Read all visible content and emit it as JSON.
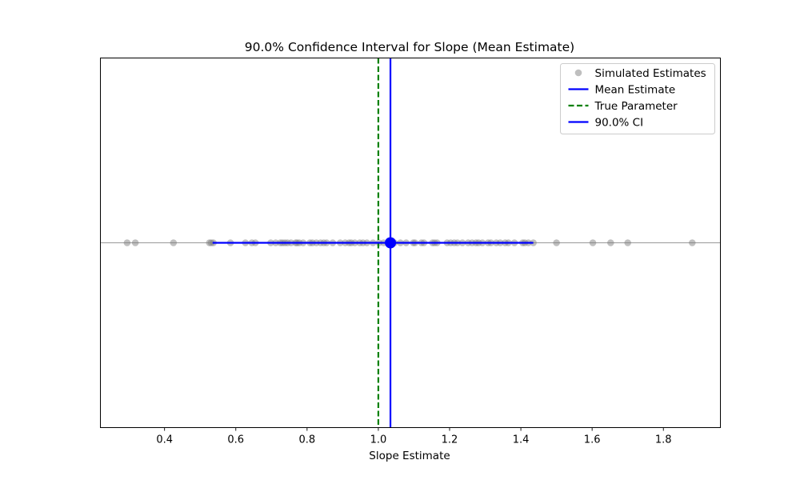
{
  "chart_data": {
    "type": "scatter",
    "title": "90.0% Confidence Interval for Slope (Mean Estimate)",
    "xlabel": "Slope Estimate",
    "ylabel": "",
    "xlim": [
      0.22,
      1.96
    ],
    "ylim": [
      -1,
      1
    ],
    "xticks": [
      0.4,
      0.6,
      0.8,
      1.0,
      1.2,
      1.4,
      1.6,
      1.8
    ],
    "xtick_labels": [
      "0.4",
      "0.6",
      "0.8",
      "1.0",
      "1.2",
      "1.4",
      "1.6",
      "1.8"
    ],
    "show_yticks": false,
    "grid": false,
    "legend_position": "top-right",
    "simulated_estimates": {
      "name": "Simulated Estimates",
      "color": "#808080",
      "y": 0,
      "values": [
        0.295,
        0.318,
        0.425,
        0.526,
        0.531,
        0.537,
        0.585,
        0.627,
        0.645,
        0.655,
        0.698,
        0.712,
        0.725,
        0.731,
        0.738,
        0.745,
        0.755,
        0.768,
        0.772,
        0.778,
        0.789,
        0.808,
        0.815,
        0.826,
        0.838,
        0.847,
        0.855,
        0.872,
        0.893,
        0.907,
        0.918,
        0.924,
        0.934,
        0.948,
        0.957,
        0.968,
        0.985,
        1.002,
        1.015,
        1.03,
        1.045,
        1.062,
        1.078,
        1.098,
        1.103,
        1.121,
        1.128,
        1.152,
        1.158,
        1.165,
        1.193,
        1.203,
        1.213,
        1.222,
        1.236,
        1.252,
        1.263,
        1.274,
        1.281,
        1.292,
        1.308,
        1.316,
        1.331,
        1.342,
        1.356,
        1.365,
        1.382,
        1.405,
        1.411,
        1.421,
        1.435,
        1.5,
        1.602,
        1.652,
        1.7,
        1.881
      ]
    },
    "mean_estimate": {
      "name": "Mean Estimate",
      "value": 1.034,
      "color": "#0000ff"
    },
    "true_parameter": {
      "name": "True Parameter",
      "value": 1.0,
      "color": "#008000"
    },
    "confidence_interval": {
      "name": "90.0% CI",
      "lower": 0.535,
      "upper": 1.435,
      "color": "#0000ff"
    },
    "zero_line_color": "#000000"
  }
}
